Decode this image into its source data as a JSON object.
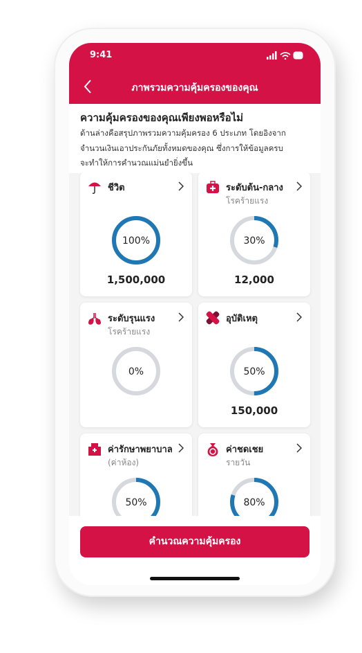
{
  "status_bar": {
    "time": "9:41"
  },
  "header": {
    "title": "ภาพรวมความคุ้มครองของคุณ"
  },
  "intro": {
    "heading": "ความคุ้มครองของคุณเพียงพอหรือไม่",
    "lines": [
      "ด้านล่างคือสรุปภาพรวมความคุ้มครอง 6 ประเภท โดยอิงจาก",
      "จำนวนเงินเอาประกันภัยทั้งหมดของคุณ ซึ่งการให้ข้อมูลครบ",
      "จะทำให้การคำนวณแม่นยำยิ่งขึ้น"
    ]
  },
  "cards": [
    {
      "title": "ชีวิต",
      "percent": 100,
      "percent_label": "100%",
      "amount": "1,500,000"
    },
    {
      "title": "ระดับต้น-กลาง",
      "subtitle": "โรคร้ายแรง",
      "percent": 30,
      "percent_label": "30%",
      "amount": "12,000"
    },
    {
      "title": "ระดับรุนแรง",
      "subtitle": "โรคร้ายแรง",
      "percent": 0,
      "percent_label": "0%"
    },
    {
      "title": "อุบัติเหตุ",
      "percent": 50,
      "percent_label": "50%",
      "amount": "150,000"
    },
    {
      "title": "ค่ารักษาพยาบาล",
      "subtitle": "(ค่าห้อง)",
      "percent": 50,
      "percent_label": "50%"
    },
    {
      "title": "ค่าชดเชย",
      "subtitle": "รายวัน",
      "percent": 80,
      "percent_label": "80%"
    }
  ],
  "button": {
    "label": "คำนวณความคุ้มครอง"
  }
}
